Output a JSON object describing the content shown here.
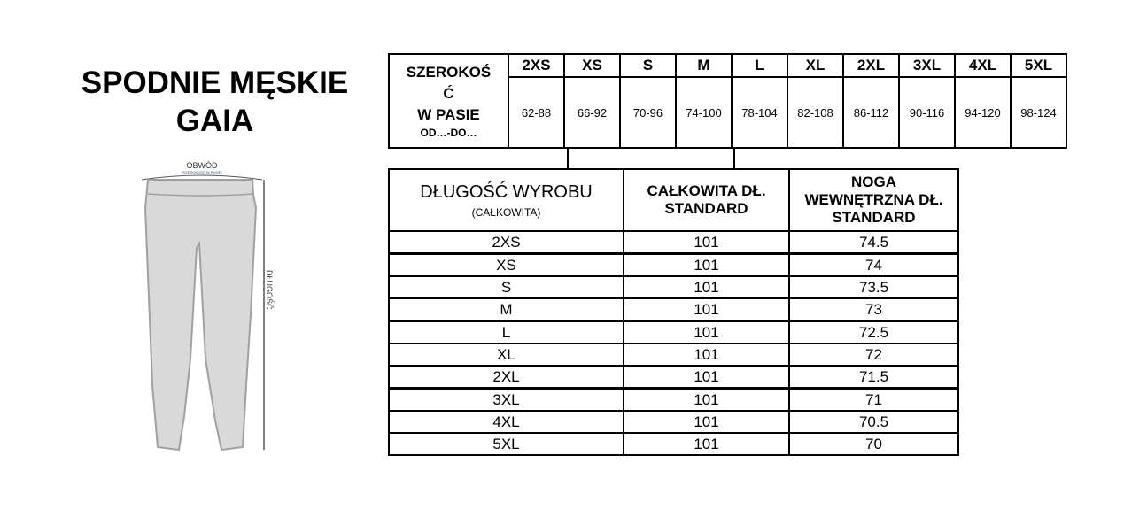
{
  "title": {
    "line1": "SPODNIE MĘSKIE",
    "line2": "GAIA"
  },
  "drawing": {
    "circumference_label": "OBWÓD",
    "circumference_sub": "(SZEROKOŚĆ W PASIE)",
    "length_label": "DŁUGOŚĆ",
    "fill": "#d9d9d9",
    "stroke": "#a0a0a0"
  },
  "waist_table": {
    "label": {
      "line1": "SZEROKOŚ",
      "line2": "Ć",
      "line3": "W PASIE",
      "line4": "OD…-DO…"
    },
    "sizes": [
      "2XS",
      "XS",
      "S",
      "M",
      "L",
      "XL",
      "2XL",
      "3XL",
      "4XL",
      "5XL"
    ],
    "values": [
      "62-88",
      "66-92",
      "70-96",
      "74-100",
      "78-104",
      "82-108",
      "86-112",
      "90-116",
      "94-120",
      "98-124"
    ]
  },
  "length_table": {
    "header": {
      "c1": "DŁUGOŚĆ WYROBU",
      "c1_sub": "(CAŁKOWITA)",
      "c2_line1": "CAŁKOWITA DŁ.",
      "c2_line2": "STANDARD",
      "c3_line1": "NOGA",
      "c3_line2": "WEWNĘTRZNA DŁ.",
      "c3_line3": "STANDARD"
    },
    "rows": [
      {
        "size": "2XS",
        "total": "101",
        "inseam": "74.5"
      },
      {
        "size": "XS",
        "total": "101",
        "inseam": "74"
      },
      {
        "size": "S",
        "total": "101",
        "inseam": "73.5"
      },
      {
        "size": "M",
        "total": "101",
        "inseam": "73"
      },
      {
        "size": "L",
        "total": "101",
        "inseam": "72.5"
      },
      {
        "size": "XL",
        "total": "101",
        "inseam": "72"
      },
      {
        "size": "2XL",
        "total": "101",
        "inseam": "71.5"
      },
      {
        "size": "3XL",
        "total": "101",
        "inseam": "71"
      },
      {
        "size": "4XL",
        "total": "101",
        "inseam": "70.5"
      },
      {
        "size": "5XL",
        "total": "101",
        "inseam": "70"
      }
    ]
  }
}
